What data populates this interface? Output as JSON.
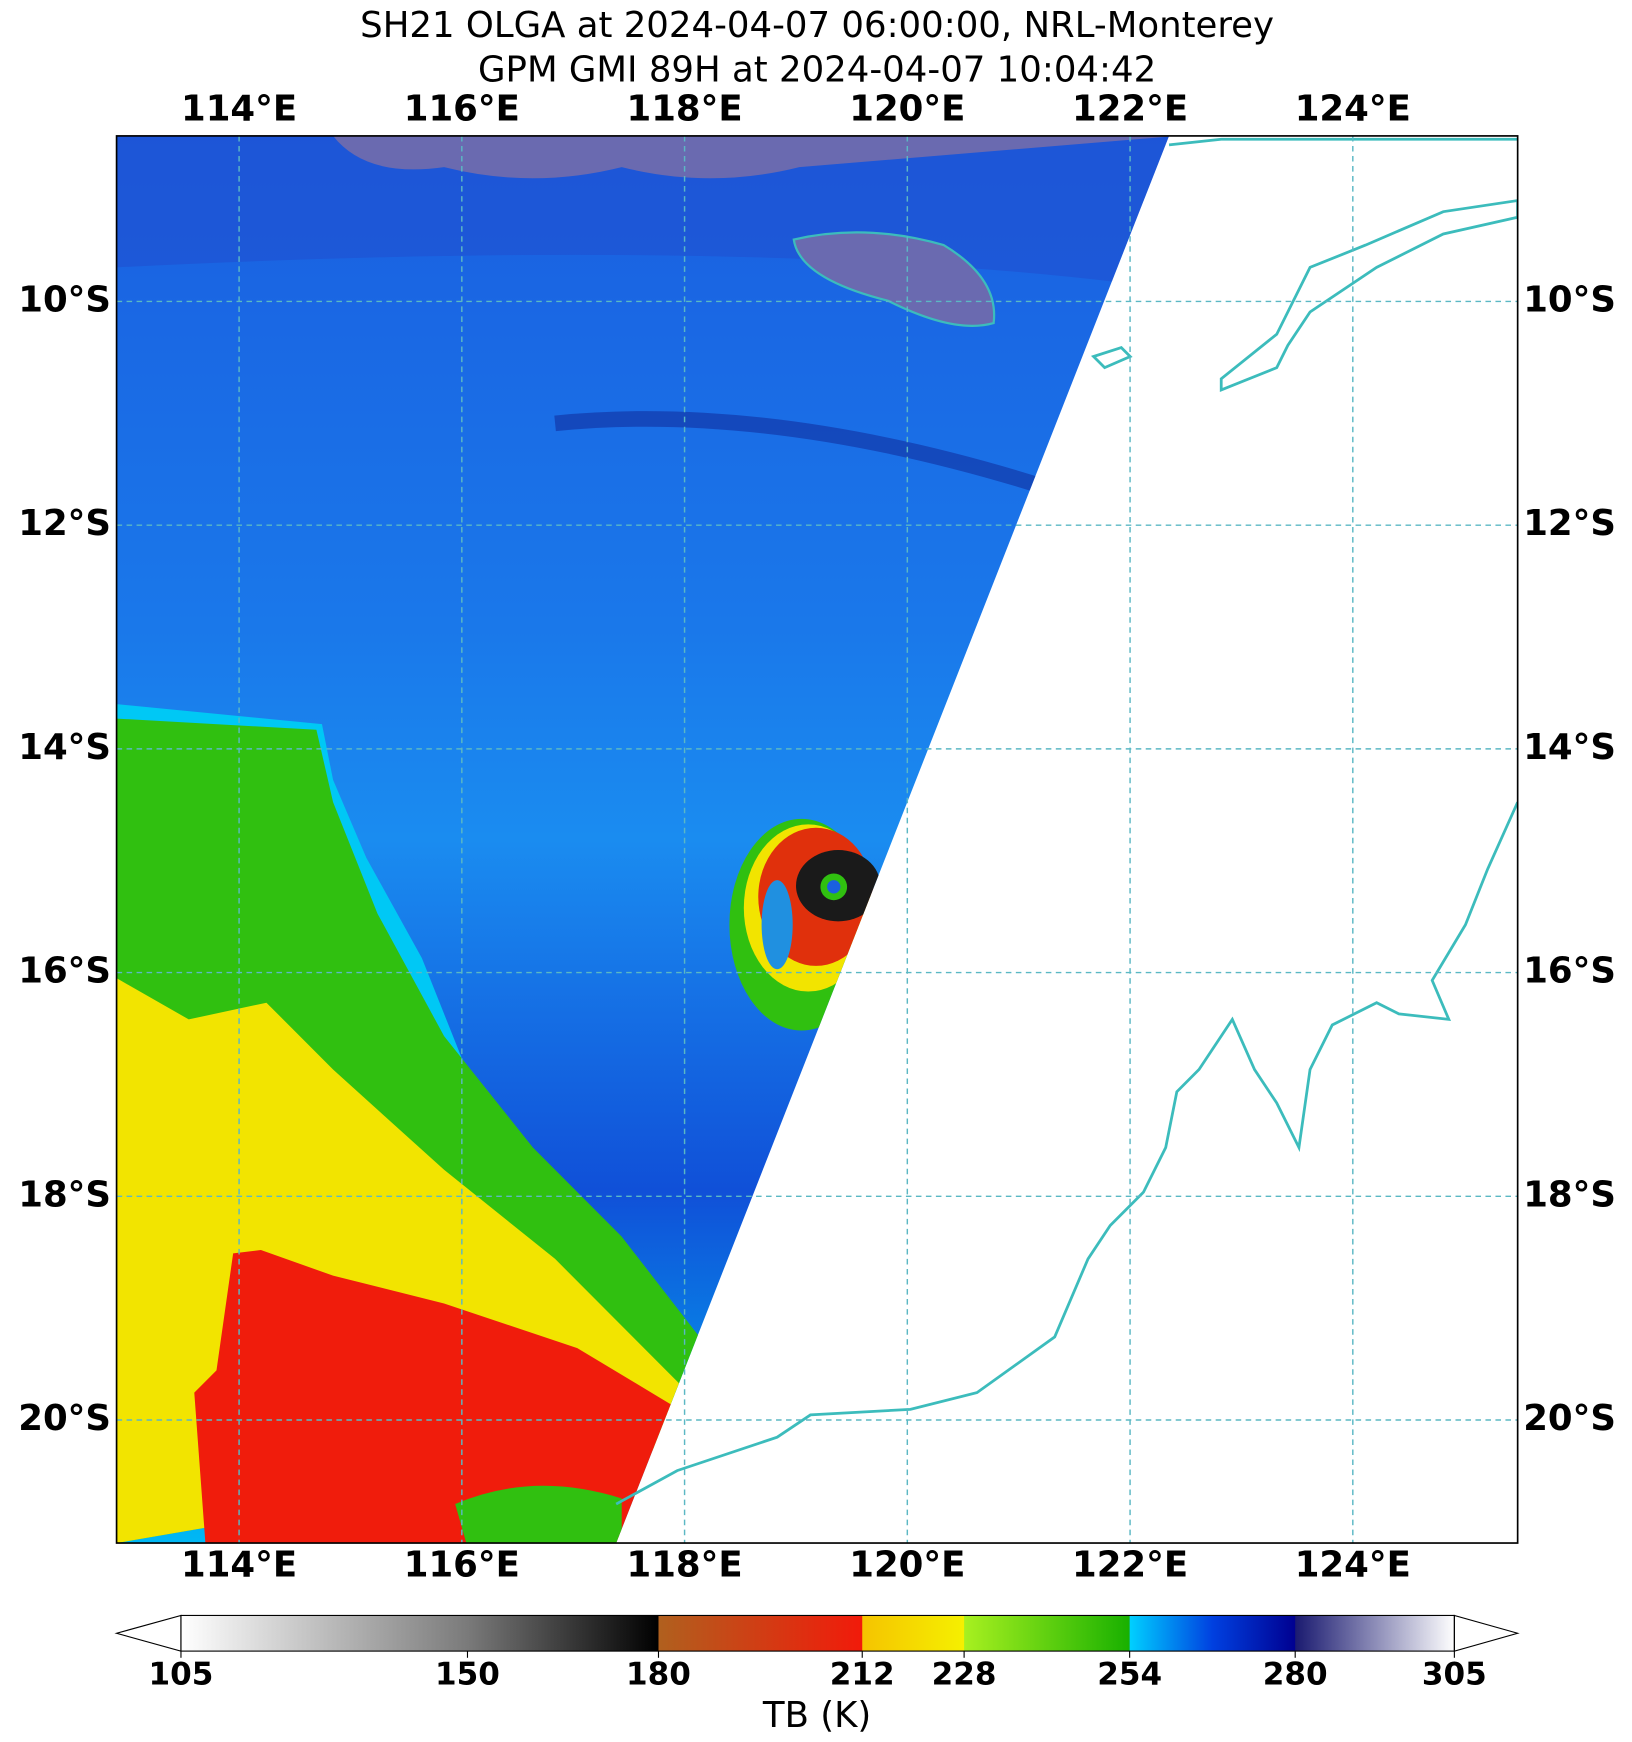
{
  "title": [
    "SH21 OLGA at 2024-04-07 06:00:00, NRL-Monterey",
    "GPM GMI 89H at 2024-04-07 10:04:42"
  ],
  "map": {
    "xlim": [
      112.9,
      125.48
    ],
    "ylim": [
      -21.1,
      -8.52
    ],
    "xticks": [
      {
        "value": 114,
        "label": "114°E"
      },
      {
        "value": 116,
        "label": "116°E"
      },
      {
        "value": 118,
        "label": "118°E"
      },
      {
        "value": 120,
        "label": "120°E"
      },
      {
        "value": 122,
        "label": "122°E"
      },
      {
        "value": 124,
        "label": "124°E"
      }
    ],
    "yticks": [
      {
        "value": -10,
        "label": "10°S"
      },
      {
        "value": -12,
        "label": "12°S"
      },
      {
        "value": -14,
        "label": "14°S"
      },
      {
        "value": -16,
        "label": "16°S"
      },
      {
        "value": -18,
        "label": "18°S"
      },
      {
        "value": -20,
        "label": "20°S"
      }
    ],
    "grid": true,
    "grid_color": "#5bb8c4"
  },
  "colorbar": {
    "label": "TB (K)",
    "lim": [
      105,
      305
    ],
    "ticks": [
      105,
      150,
      180,
      212,
      228,
      254,
      280,
      305
    ],
    "colors": [
      [
        "#ffffff",
        "#7a7a7a"
      ],
      [
        "#7a7a7a",
        "#000000"
      ],
      [
        "#b0601e",
        "#f21a0a"
      ],
      [
        "#f5c400",
        "#f5f000"
      ],
      [
        "#a8f020",
        "#18b000"
      ],
      [
        "#00d0ff",
        "#0040e0",
        "#000090"
      ],
      [
        "#1a1a70",
        "#ffffff"
      ]
    ],
    "extend": "both"
  }
}
